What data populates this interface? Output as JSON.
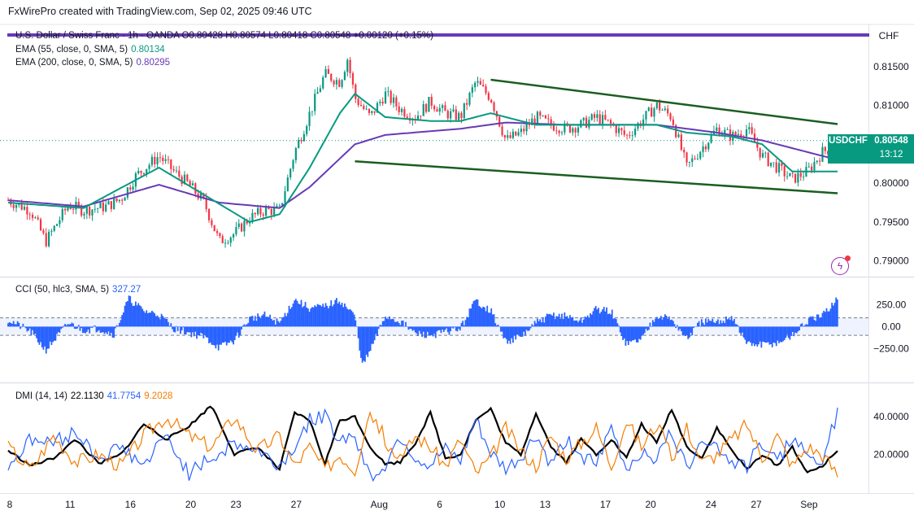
{
  "header": {
    "text": "FxWirePro created with TradingView.com, Sep 02, 2025 09:46 UTC"
  },
  "currency": "CHF",
  "legend": {
    "symbol_line": "U.S. Dollar / Swiss Franc · 1h · OANDA  O0.80428  H0.80574  L0.80418  C0.80548  +0.00120 (+0.15%)",
    "ema55_label": "EMA (55, close, 0, SMA, 5)",
    "ema55_value": "0.80134",
    "ema200_label": "EMA (200, close, 0, SMA, 5)",
    "ema200_value": "0.80295",
    "cci_label": "CCI (50, hlc3, SMA, 5)",
    "cci_value": "327.27",
    "dmi_label": "DMI (14, 14)",
    "dmi_adx": "22.1130",
    "dmi_plus": "41.7754",
    "dmi_minus": "9.2028"
  },
  "badge": {
    "symbol": "USDCHF",
    "price": "0.80548",
    "time": "13:12"
  },
  "colors": {
    "up": "#089981",
    "down": "#f23645",
    "ema55": "#089981",
    "ema200": "#673ab7",
    "channel": "#1b5e20",
    "cci": "#2962ff",
    "dmi_plus": "#2962ff",
    "dmi_minus": "#f57c00",
    "adx": "#000000",
    "top_bar": "#673ab7"
  },
  "chart_data": [
    {
      "type": "candlestick",
      "title": "U.S. Dollar / Swiss Franc · 1h · OANDA",
      "ylim": [
        0.7885,
        0.8178
      ],
      "y_ticks": [
        0.815,
        0.81,
        0.805,
        0.8,
        0.795,
        0.79
      ],
      "y_tick_labels": [
        "0.81500",
        "0.81000",
        "0.80500",
        "0.80000",
        "0.79500",
        "0.79000"
      ],
      "x_tick_labels": [
        "8",
        "11",
        "16",
        "20",
        "23",
        "27",
        "Aug",
        "6",
        "10",
        "13",
        "17",
        "20",
        "24",
        "27",
        "Sep"
      ],
      "last_price": 0.80548,
      "price_path": [
        [
          0,
          0.7978
        ],
        [
          3,
          0.7965
        ],
        [
          5,
          0.7925
        ],
        [
          8,
          0.7972
        ],
        [
          10,
          0.7965
        ],
        [
          13,
          0.797
        ],
        [
          15,
          0.798
        ],
        [
          17,
          0.801
        ],
        [
          20,
          0.8035
        ],
        [
          22,
          0.8015
        ],
        [
          24,
          0.7998
        ],
        [
          26,
          0.7975
        ],
        [
          28,
          0.7925
        ],
        [
          30,
          0.7935
        ],
        [
          32,
          0.7955
        ],
        [
          34,
          0.7965
        ],
        [
          36,
          0.7965
        ],
        [
          38,
          0.804
        ],
        [
          40,
          0.809
        ],
        [
          42,
          0.814
        ],
        [
          44,
          0.813
        ],
        [
          45,
          0.816
        ],
        [
          46,
          0.811
        ],
        [
          48,
          0.8085
        ],
        [
          50,
          0.8115
        ],
        [
          52,
          0.8095
        ],
        [
          54,
          0.8085
        ],
        [
          56,
          0.8105
        ],
        [
          58,
          0.809
        ],
        [
          60,
          0.8085
        ],
        [
          62,
          0.813
        ],
        [
          64,
          0.811
        ],
        [
          66,
          0.8055
        ],
        [
          68,
          0.8065
        ],
        [
          70,
          0.8085
        ],
        [
          72,
          0.8075
        ],
        [
          74,
          0.807
        ],
        [
          76,
          0.8075
        ],
        [
          78,
          0.8085
        ],
        [
          80,
          0.8075
        ],
        [
          82,
          0.806
        ],
        [
          84,
          0.808
        ],
        [
          86,
          0.81
        ],
        [
          88,
          0.8085
        ],
        [
          90,
          0.802
        ],
        [
          92,
          0.8045
        ],
        [
          94,
          0.807
        ],
        [
          96,
          0.806
        ],
        [
          98,
          0.807
        ],
        [
          100,
          0.8035
        ],
        [
          102,
          0.802
        ],
        [
          104,
          0.8005
        ],
        [
          106,
          0.8015
        ],
        [
          108,
          0.804
        ],
        [
          110,
          0.805
        ]
      ],
      "ema55": [
        [
          0,
          0.7975
        ],
        [
          10,
          0.7968
        ],
        [
          20,
          0.802
        ],
        [
          26,
          0.7985
        ],
        [
          32,
          0.795
        ],
        [
          36,
          0.796
        ],
        [
          40,
          0.802
        ],
        [
          44,
          0.809
        ],
        [
          46,
          0.8115
        ],
        [
          50,
          0.8085
        ],
        [
          56,
          0.808
        ],
        [
          60,
          0.808
        ],
        [
          64,
          0.809
        ],
        [
          70,
          0.8075
        ],
        [
          78,
          0.8075
        ],
        [
          86,
          0.8075
        ],
        [
          90,
          0.8065
        ],
        [
          96,
          0.806
        ],
        [
          100,
          0.805
        ],
        [
          104,
          0.8015
        ],
        [
          110,
          0.8015
        ]
      ],
      "ema200": [
        [
          0,
          0.7978
        ],
        [
          10,
          0.797
        ],
        [
          20,
          0.7998
        ],
        [
          28,
          0.7975
        ],
        [
          36,
          0.7968
        ],
        [
          40,
          0.7995
        ],
        [
          46,
          0.805
        ],
        [
          50,
          0.8062
        ],
        [
          60,
          0.807
        ],
        [
          66,
          0.8078
        ],
        [
          74,
          0.8075
        ],
        [
          86,
          0.8075
        ],
        [
          94,
          0.8065
        ],
        [
          100,
          0.8055
        ],
        [
          106,
          0.804
        ],
        [
          110,
          0.803
        ]
      ],
      "channel_upper": [
        [
          64,
          0.8133
        ],
        [
          110,
          0.8076
        ]
      ],
      "channel_lower": [
        [
          46,
          0.8028
        ],
        [
          110,
          0.7987
        ]
      ]
    },
    {
      "type": "histogram",
      "title": "CCI (50, hlc3, SMA, 5)",
      "ylim": [
        -620,
        460
      ],
      "y_ticks": [
        250,
        0,
        -250
      ],
      "y_tick_labels": [
        "250.00",
        "0.00",
        "−250.00"
      ],
      "band": [
        100,
        -100
      ],
      "values": [
        [
          0,
          80
        ],
        [
          3,
          -60
        ],
        [
          5,
          -270
        ],
        [
          8,
          40
        ],
        [
          10,
          -40
        ],
        [
          12,
          -20
        ],
        [
          14,
          -90
        ],
        [
          16,
          320
        ],
        [
          18,
          180
        ],
        [
          20,
          140
        ],
        [
          22,
          -20
        ],
        [
          24,
          -70
        ],
        [
          26,
          -120
        ],
        [
          28,
          -240
        ],
        [
          30,
          -160
        ],
        [
          32,
          90
        ],
        [
          34,
          130
        ],
        [
          36,
          40
        ],
        [
          38,
          310
        ],
        [
          40,
          210
        ],
        [
          42,
          230
        ],
        [
          44,
          300
        ],
        [
          46,
          120
        ],
        [
          47,
          -450
        ],
        [
          48,
          -280
        ],
        [
          50,
          120
        ],
        [
          52,
          60
        ],
        [
          54,
          -80
        ],
        [
          56,
          -100
        ],
        [
          58,
          -60
        ],
        [
          60,
          -20
        ],
        [
          62,
          300
        ],
        [
          64,
          180
        ],
        [
          66,
          -170
        ],
        [
          68,
          -120
        ],
        [
          70,
          40
        ],
        [
          72,
          130
        ],
        [
          74,
          120
        ],
        [
          76,
          60
        ],
        [
          78,
          200
        ],
        [
          80,
          170
        ],
        [
          82,
          -200
        ],
        [
          84,
          -140
        ],
        [
          86,
          140
        ],
        [
          88,
          80
        ],
        [
          90,
          -140
        ],
        [
          92,
          60
        ],
        [
          94,
          40
        ],
        [
          96,
          120
        ],
        [
          98,
          -200
        ],
        [
          100,
          -210
        ],
        [
          102,
          -190
        ],
        [
          104,
          -100
        ],
        [
          106,
          60
        ],
        [
          108,
          120
        ],
        [
          110,
          330
        ]
      ]
    },
    {
      "type": "line",
      "title": "DMI (14, 14)",
      "ylim": [
        0,
        52
      ],
      "y_ticks": [
        40,
        20
      ],
      "y_tick_labels": [
        "40.0000",
        "20.0000"
      ],
      "series": [
        {
          "name": "ADX",
          "values": [
            [
              0,
              22
            ],
            [
              3,
              14
            ],
            [
              6,
              18
            ],
            [
              9,
              28
            ],
            [
              12,
              15
            ],
            [
              15,
              20
            ],
            [
              18,
              36
            ],
            [
              21,
              28
            ],
            [
              24,
              35
            ],
            [
              27,
              46
            ],
            [
              30,
              20
            ],
            [
              33,
              24
            ],
            [
              36,
              12
            ],
            [
              38,
              42
            ],
            [
              40,
              38
            ],
            [
              42,
              15
            ],
            [
              44,
              38
            ],
            [
              46,
              40
            ],
            [
              48,
              24
            ],
            [
              50,
              15
            ],
            [
              52,
              16
            ],
            [
              54,
              26
            ],
            [
              56,
              42
            ],
            [
              58,
              18
            ],
            [
              60,
              20
            ],
            [
              62,
              38
            ],
            [
              64,
              44
            ],
            [
              66,
              26
            ],
            [
              68,
              20
            ],
            [
              70,
              42
            ],
            [
              72,
              24
            ],
            [
              74,
              16
            ],
            [
              76,
              28
            ],
            [
              78,
              20
            ],
            [
              80,
              28
            ],
            [
              82,
              18
            ],
            [
              84,
              36
            ],
            [
              86,
              26
            ],
            [
              88,
              44
            ],
            [
              90,
              24
            ],
            [
              92,
              18
            ],
            [
              94,
              34
            ],
            [
              96,
              22
            ],
            [
              98,
              12
            ],
            [
              100,
              20
            ],
            [
              102,
              14
            ],
            [
              104,
              24
            ],
            [
              106,
              10
            ],
            [
              108,
              14
            ],
            [
              110,
              22
            ]
          ]
        },
        {
          "name": "+DI",
          "values": [
            [
              0,
              14
            ],
            [
              3,
              28
            ],
            [
              6,
              26
            ],
            [
              9,
              32
            ],
            [
              12,
              18
            ],
            [
              15,
              24
            ],
            [
              18,
              14
            ],
            [
              21,
              30
            ],
            [
              24,
              10
            ],
            [
              27,
              18
            ],
            [
              30,
              26
            ],
            [
              33,
              22
            ],
            [
              36,
              14
            ],
            [
              38,
              24
            ],
            [
              40,
              38
            ],
            [
              42,
              40
            ],
            [
              44,
              28
            ],
            [
              46,
              30
            ],
            [
              48,
              8
            ],
            [
              50,
              14
            ],
            [
              52,
              30
            ],
            [
              54,
              18
            ],
            [
              56,
              14
            ],
            [
              58,
              22
            ],
            [
              60,
              16
            ],
            [
              62,
              38
            ],
            [
              64,
              20
            ],
            [
              66,
              12
            ],
            [
              68,
              18
            ],
            [
              70,
              30
            ],
            [
              72,
              14
            ],
            [
              74,
              28
            ],
            [
              76,
              20
            ],
            [
              78,
              14
            ],
            [
              80,
              34
            ],
            [
              82,
              12
            ],
            [
              84,
              22
            ],
            [
              86,
              18
            ],
            [
              88,
              32
            ],
            [
              90,
              12
            ],
            [
              92,
              30
            ],
            [
              94,
              24
            ],
            [
              96,
              16
            ],
            [
              98,
              14
            ],
            [
              100,
              26
            ],
            [
              102,
              16
            ],
            [
              104,
              28
            ],
            [
              106,
              20
            ],
            [
              108,
              18
            ],
            [
              110,
              41.8
            ]
          ]
        },
        {
          "name": "−DI",
          "values": [
            [
              0,
              24
            ],
            [
              3,
              12
            ],
            [
              6,
              30
            ],
            [
              9,
              16
            ],
            [
              12,
              20
            ],
            [
              15,
              14
            ],
            [
              18,
              30
            ],
            [
              21,
              40
            ],
            [
              24,
              30
            ],
            [
              27,
              24
            ],
            [
              30,
              40
            ],
            [
              33,
              22
            ],
            [
              36,
              30
            ],
            [
              38,
              14
            ],
            [
              40,
              24
            ],
            [
              42,
              12
            ],
            [
              44,
              20
            ],
            [
              46,
              12
            ],
            [
              48,
              44
            ],
            [
              50,
              28
            ],
            [
              52,
              16
            ],
            [
              54,
              30
            ],
            [
              56,
              24
            ],
            [
              58,
              14
            ],
            [
              60,
              28
            ],
            [
              62,
              10
            ],
            [
              64,
              18
            ],
            [
              66,
              34
            ],
            [
              68,
              22
            ],
            [
              70,
              14
            ],
            [
              72,
              30
            ],
            [
              74,
              18
            ],
            [
              76,
              26
            ],
            [
              78,
              34
            ],
            [
              80,
              14
            ],
            [
              82,
              38
            ],
            [
              84,
              24
            ],
            [
              86,
              36
            ],
            [
              88,
              18
            ],
            [
              90,
              34
            ],
            [
              92,
              16
            ],
            [
              94,
              20
            ],
            [
              96,
              28
            ],
            [
              98,
              36
            ],
            [
              100,
              18
            ],
            [
              102,
              30
            ],
            [
              104,
              14
            ],
            [
              106,
              24
            ],
            [
              108,
              20
            ],
            [
              110,
              9.2
            ]
          ]
        }
      ]
    }
  ]
}
